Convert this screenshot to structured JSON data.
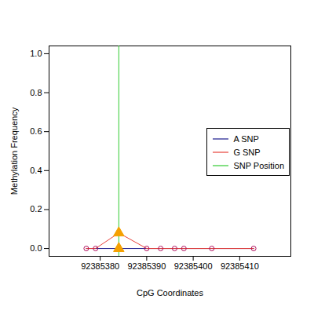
{
  "chart_data": {
    "type": "line",
    "x_label": "CpG Coordinates",
    "y_label": "Methylation Frequency",
    "xlim": [
      92385369,
      92385421
    ],
    "xticks": [
      92385380,
      92385390,
      92385400,
      92385410
    ],
    "ylim": [
      -0.04,
      1.04
    ],
    "yticks": [
      {
        "value": 0,
        "label": "0.0"
      },
      {
        "value": 0.2,
        "label": "0.2"
      },
      {
        "value": 0.4,
        "label": "0.4"
      },
      {
        "value": 0.6,
        "label": "0.6"
      },
      {
        "value": 0.8,
        "label": "0.8"
      },
      {
        "value": 1,
        "label": "1.0"
      }
    ],
    "legend": "right",
    "series": [
      {
        "name": "A SNP",
        "color": "#1a1a8c",
        "x": [
          92385377,
          92385379,
          92385384,
          92385390,
          92385393,
          92385396,
          92385398,
          92385404,
          92385413
        ],
        "values": [
          0,
          0,
          0,
          0,
          0,
          0,
          0,
          0,
          0
        ]
      },
      {
        "name": "G SNP",
        "color": "#e8413a",
        "x": [
          92385377,
          92385379,
          92385384,
          92385390,
          92385393,
          92385396,
          92385398,
          92385404,
          92385413
        ],
        "values": [
          0,
          0,
          0.08,
          0,
          0,
          0,
          0,
          0,
          0
        ]
      }
    ],
    "snp_position": {
      "name": "SNP Position",
      "color": "#33cc33",
      "x": 92385384
    },
    "cpg_sites": {
      "x": [
        92385377,
        92385379,
        92385390,
        92385393,
        92385396,
        92385398,
        92385404,
        92385413
      ],
      "values": [
        0,
        0,
        0,
        0,
        0,
        0,
        0,
        0
      ],
      "color": "#b0105f",
      "marker": "circle"
    },
    "snp_values": {
      "x": [
        92385384,
        92385384
      ],
      "values": [
        0.08,
        0
      ],
      "color": "#f5a000",
      "marker": "triangle"
    }
  }
}
